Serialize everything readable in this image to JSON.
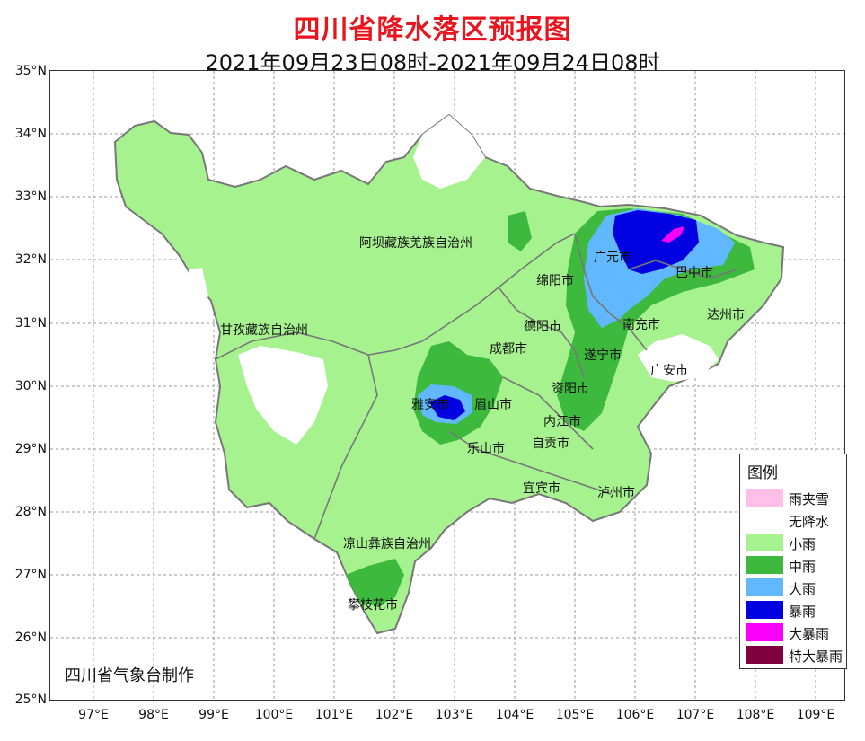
{
  "title": "四川省降水落区预报图",
  "subtitle": "2021年09月23日08时-2021年09月24日08时",
  "credit": "四川省气象台制作",
  "axes": {
    "lat_labels": [
      "35°N",
      "34°N",
      "33°N",
      "32°N",
      "31°N",
      "30°N",
      "29°N",
      "28°N",
      "27°N",
      "26°N",
      "25°N"
    ],
    "lon_labels": [
      "97°E",
      "98°E",
      "99°E",
      "100°E",
      "101°E",
      "102°E",
      "103°E",
      "104°E",
      "105°E",
      "106°E",
      "107°E",
      "108°E",
      "109°E"
    ]
  },
  "legend": {
    "title": "图例",
    "items": [
      {
        "label": "雨夹雪",
        "color": "#ffbfe6"
      },
      {
        "label": "无降水",
        "color": "#ffffff"
      },
      {
        "label": "小雨",
        "color": "#a6f28f"
      },
      {
        "label": "中雨",
        "color": "#3dba3d"
      },
      {
        "label": "大雨",
        "color": "#61b8ff"
      },
      {
        "label": "暴雨",
        "color": "#0000e1"
      },
      {
        "label": "大暴雨",
        "color": "#fa00fa"
      },
      {
        "label": "特大暴雨",
        "color": "#800040"
      }
    ]
  },
  "places": {
    "aba": "阿坝藏族羌族自治州",
    "ganzi": "甘孜藏族自治州",
    "liangshan": "凉山彝族自治州",
    "panzhihua": "攀枝花市",
    "guangyuan": "广元市",
    "bazhong": "巴中市",
    "mianyang": "绵阳市",
    "dazhou": "达州市",
    "nanchong": "南充市",
    "deyang": "德阳市",
    "chengdu": "成都市",
    "suining": "遂宁市",
    "guangan": "广安市",
    "yaan": "雅安市",
    "meishan": "眉山市",
    "ziyang": "资阳市",
    "neijiang": "内江市",
    "leshan": "乐山市",
    "zigong": "自贡市",
    "yibin": "宜宾市",
    "luzhou": "泸州市"
  }
}
